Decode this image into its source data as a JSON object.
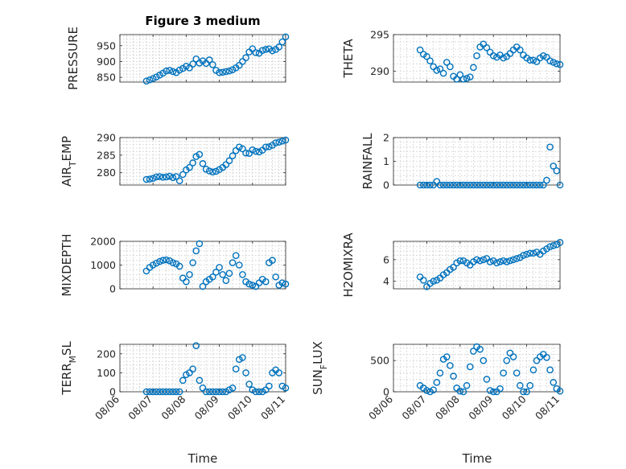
{
  "figure": {
    "title": "Figure 3 medium",
    "xlabel": "Time",
    "xticks": [
      "08/06",
      "08/07",
      "08/08",
      "08/09",
      "08/10",
      "08/11"
    ],
    "marker_color": "#0072BD",
    "axis_color": "#262626"
  },
  "chart_data": [
    {
      "type": "scatter",
      "title": "Figure 3 medium",
      "ylabel": "PRESSURE",
      "ylim": [
        835,
        985
      ],
      "yticks": [
        "850",
        "900",
        "950"
      ],
      "ytick_values": [
        850,
        900,
        950
      ],
      "x": [
        0.8,
        0.9,
        1.0,
        1.1,
        1.2,
        1.3,
        1.4,
        1.5,
        1.6,
        1.7,
        1.8,
        1.9,
        2.0,
        2.1,
        2.2,
        2.3,
        2.4,
        2.5,
        2.6,
        2.7,
        2.8,
        2.9,
        3.0,
        3.1,
        3.2,
        3.3,
        3.4,
        3.5,
        3.6,
        3.7,
        3.8,
        3.9,
        4.0,
        4.1,
        4.2,
        4.3,
        4.4,
        4.5,
        4.6,
        4.7,
        4.8,
        4.9,
        5.0
      ],
      "y": [
        838,
        842,
        846,
        851,
        857,
        863,
        870,
        872,
        868,
        865,
        873,
        878,
        885,
        880,
        892,
        908,
        895,
        902,
        894,
        905,
        890,
        872,
        865,
        866,
        868,
        870,
        874,
        880,
        888,
        900,
        912,
        930,
        940,
        928,
        926,
        935,
        938,
        940,
        934,
        938,
        946,
        962,
        978
      ]
    },
    {
      "type": "scatter",
      "ylabel": "THETA",
      "ylim": [
        288.5,
        295
      ],
      "yticks": [
        "290",
        "295"
      ],
      "ytick_values": [
        290,
        295
      ],
      "x": [
        0.8,
        0.9,
        1.0,
        1.1,
        1.2,
        1.3,
        1.4,
        1.5,
        1.6,
        1.7,
        1.8,
        1.9,
        2.0,
        2.1,
        2.2,
        2.3,
        2.4,
        2.5,
        2.6,
        2.7,
        2.8,
        2.9,
        3.0,
        3.1,
        3.2,
        3.3,
        3.4,
        3.5,
        3.6,
        3.7,
        3.8,
        3.9,
        4.0,
        4.1,
        4.2,
        4.3,
        4.4,
        4.5,
        4.6,
        4.7,
        4.8,
        4.9,
        5.0
      ],
      "y": [
        292.9,
        292.3,
        292.0,
        291.4,
        290.6,
        290.1,
        290.3,
        289.7,
        291.2,
        290.6,
        289.3,
        288.9,
        289.5,
        288.9,
        289.0,
        289.2,
        290.5,
        292.1,
        293.3,
        293.7,
        293.2,
        292.6,
        292.1,
        291.9,
        292.2,
        291.8,
        292.0,
        292.4,
        292.9,
        293.3,
        292.9,
        292.2,
        291.8,
        291.5,
        291.5,
        291.3,
        291.8,
        292.1,
        291.9,
        291.4,
        291.2,
        291.0,
        290.9
      ]
    },
    {
      "type": "scatter",
      "ylabel": "AIR_TEMP",
      "ylim": [
        276.5,
        290
      ],
      "yticks": [
        "280",
        "285",
        "290"
      ],
      "ytick_values": [
        280,
        285,
        290
      ],
      "x": [
        0.8,
        0.9,
        1.0,
        1.1,
        1.2,
        1.3,
        1.4,
        1.5,
        1.6,
        1.7,
        1.8,
        1.9,
        2.0,
        2.1,
        2.2,
        2.3,
        2.4,
        2.5,
        2.6,
        2.7,
        2.8,
        2.9,
        3.0,
        3.1,
        3.2,
        3.3,
        3.4,
        3.5,
        3.6,
        3.7,
        3.8,
        3.9,
        4.0,
        4.1,
        4.2,
        4.3,
        4.4,
        4.5,
        4.6,
        4.7,
        4.8,
        4.9,
        5.0
      ],
      "y": [
        278.1,
        278.2,
        278.4,
        278.8,
        278.9,
        278.7,
        278.8,
        279.0,
        278.6,
        278.9,
        277.7,
        279.5,
        280.8,
        281.5,
        282.8,
        284.6,
        285.2,
        282.6,
        281.0,
        280.5,
        280.2,
        280.4,
        280.9,
        281.5,
        282.3,
        283.4,
        284.8,
        286.3,
        287.3,
        286.8,
        285.6,
        285.5,
        286.5,
        286.1,
        285.9,
        286.4,
        287.3,
        287.4,
        287.8,
        288.5,
        288.7,
        289.0,
        289.3
      ]
    },
    {
      "type": "scatter",
      "ylabel": "RAINFALL",
      "ylim": [
        0,
        2
      ],
      "yticks": [
        "0",
        "1",
        "2"
      ],
      "ytick_values": [
        0,
        1,
        2
      ],
      "x": [
        0.8,
        0.9,
        1.0,
        1.1,
        1.2,
        1.3,
        1.4,
        1.5,
        1.6,
        1.7,
        1.8,
        1.9,
        2.0,
        2.1,
        2.2,
        2.3,
        2.4,
        2.5,
        2.6,
        2.7,
        2.8,
        2.9,
        3.0,
        3.1,
        3.2,
        3.3,
        3.4,
        3.5,
        3.6,
        3.7,
        3.8,
        3.9,
        4.0,
        4.1,
        4.2,
        4.3,
        4.4,
        4.5,
        4.6,
        4.7,
        4.8,
        4.9,
        5.0
      ],
      "y": [
        0,
        0,
        0,
        0,
        0,
        0.15,
        0,
        0,
        0,
        0,
        0,
        0,
        0,
        0,
        0,
        0,
        0,
        0,
        0,
        0,
        0,
        0,
        0,
        0,
        0,
        0,
        0,
        0,
        0,
        0,
        0,
        0,
        0,
        0,
        0,
        0,
        0,
        0,
        0.2,
        1.6,
        0.8,
        0.6,
        0
      ]
    },
    {
      "type": "scatter",
      "ylabel": "MIXDEPTH",
      "ylim": [
        0,
        2000
      ],
      "yticks": [
        "0",
        "1000",
        "2000"
      ],
      "ytick_values": [
        0,
        1000,
        2000
      ],
      "x": [
        0.8,
        0.9,
        1.0,
        1.1,
        1.2,
        1.3,
        1.4,
        1.5,
        1.6,
        1.7,
        1.8,
        1.9,
        2.0,
        2.1,
        2.2,
        2.3,
        2.4,
        2.5,
        2.6,
        2.7,
        2.8,
        2.9,
        3.0,
        3.1,
        3.2,
        3.3,
        3.4,
        3.5,
        3.6,
        3.7,
        3.8,
        3.9,
        4.0,
        4.1,
        4.2,
        4.3,
        4.4,
        4.5,
        4.6,
        4.7,
        4.8,
        4.9,
        5.0
      ],
      "y": [
        750,
        900,
        1000,
        1080,
        1150,
        1200,
        1220,
        1180,
        1100,
        1050,
        950,
        450,
        300,
        600,
        1100,
        1600,
        1900,
        100,
        300,
        400,
        500,
        700,
        900,
        600,
        350,
        650,
        1100,
        1400,
        1000,
        600,
        300,
        200,
        150,
        100,
        250,
        400,
        300,
        1100,
        1200,
        500,
        150,
        250,
        200
      ]
    },
    {
      "type": "scatter",
      "ylabel": "H2OMIXRA",
      "ylim": [
        3.3,
        7.7
      ],
      "yticks": [
        "4",
        "6"
      ],
      "ytick_values": [
        4,
        6
      ],
      "x": [
        0.8,
        0.9,
        1.0,
        1.1,
        1.2,
        1.3,
        1.4,
        1.5,
        1.6,
        1.7,
        1.8,
        1.9,
        2.0,
        2.1,
        2.2,
        2.3,
        2.4,
        2.5,
        2.6,
        2.7,
        2.8,
        2.9,
        3.0,
        3.1,
        3.2,
        3.3,
        3.4,
        3.5,
        3.6,
        3.7,
        3.8,
        3.9,
        4.0,
        4.1,
        4.2,
        4.3,
        4.4,
        4.5,
        4.6,
        4.7,
        4.8,
        4.9,
        5.0
      ],
      "y": [
        4.4,
        4.1,
        3.5,
        3.8,
        4.0,
        4.1,
        4.3,
        4.6,
        4.8,
        5.1,
        5.3,
        5.7,
        5.9,
        5.9,
        5.7,
        5.5,
        5.8,
        6.0,
        5.9,
        6.0,
        6.1,
        5.8,
        5.9,
        5.7,
        5.8,
        5.9,
        5.8,
        5.9,
        6.0,
        6.1,
        6.2,
        6.4,
        6.5,
        6.6,
        6.6,
        6.7,
        6.5,
        6.8,
        7.0,
        7.2,
        7.3,
        7.4,
        7.6
      ]
    },
    {
      "type": "scatter",
      "ylabel": "TERR_MSL",
      "ylim": [
        0,
        250
      ],
      "yticks": [
        "0",
        "100",
        "200"
      ],
      "ytick_values": [
        0,
        100,
        200
      ],
      "x": [
        0.8,
        0.9,
        1.0,
        1.1,
        1.2,
        1.3,
        1.4,
        1.5,
        1.6,
        1.7,
        1.8,
        1.9,
        2.0,
        2.1,
        2.2,
        2.3,
        2.4,
        2.5,
        2.6,
        2.7,
        2.8,
        2.9,
        3.0,
        3.1,
        3.2,
        3.3,
        3.4,
        3.5,
        3.6,
        3.7,
        3.8,
        3.9,
        4.0,
        4.1,
        4.2,
        4.3,
        4.4,
        4.5,
        4.6,
        4.7,
        4.8,
        4.9,
        5.0
      ],
      "y": [
        0,
        0,
        0,
        0,
        0,
        0,
        0,
        0,
        0,
        0,
        0,
        60,
        90,
        100,
        120,
        243,
        60,
        20,
        0,
        0,
        0,
        0,
        0,
        0,
        0,
        10,
        20,
        120,
        170,
        180,
        100,
        40,
        10,
        0,
        0,
        0,
        10,
        30,
        100,
        115,
        100,
        30,
        20
      ]
    },
    {
      "type": "scatter",
      "ylabel": "SUN_FLUX",
      "ylim": [
        0,
        760
      ],
      "yticks": [
        "0",
        "500"
      ],
      "ytick_values": [
        0,
        500
      ],
      "x": [
        0.8,
        0.9,
        1.0,
        1.1,
        1.2,
        1.3,
        1.4,
        1.5,
        1.6,
        1.7,
        1.8,
        1.9,
        2.0,
        2.1,
        2.2,
        2.3,
        2.4,
        2.5,
        2.6,
        2.7,
        2.8,
        2.9,
        3.0,
        3.1,
        3.2,
        3.3,
        3.4,
        3.5,
        3.6,
        3.7,
        3.8,
        3.9,
        4.0,
        4.1,
        4.2,
        4.3,
        4.4,
        4.5,
        4.6,
        4.7,
        4.8,
        4.9,
        5.0
      ],
      "y": [
        100,
        60,
        20,
        0,
        30,
        150,
        300,
        520,
        560,
        420,
        250,
        60,
        10,
        0,
        100,
        400,
        650,
        720,
        680,
        500,
        200,
        20,
        0,
        0,
        50,
        300,
        500,
        620,
        560,
        300,
        100,
        0,
        0,
        100,
        350,
        500,
        560,
        600,
        550,
        350,
        150,
        50,
        10
      ]
    }
  ]
}
